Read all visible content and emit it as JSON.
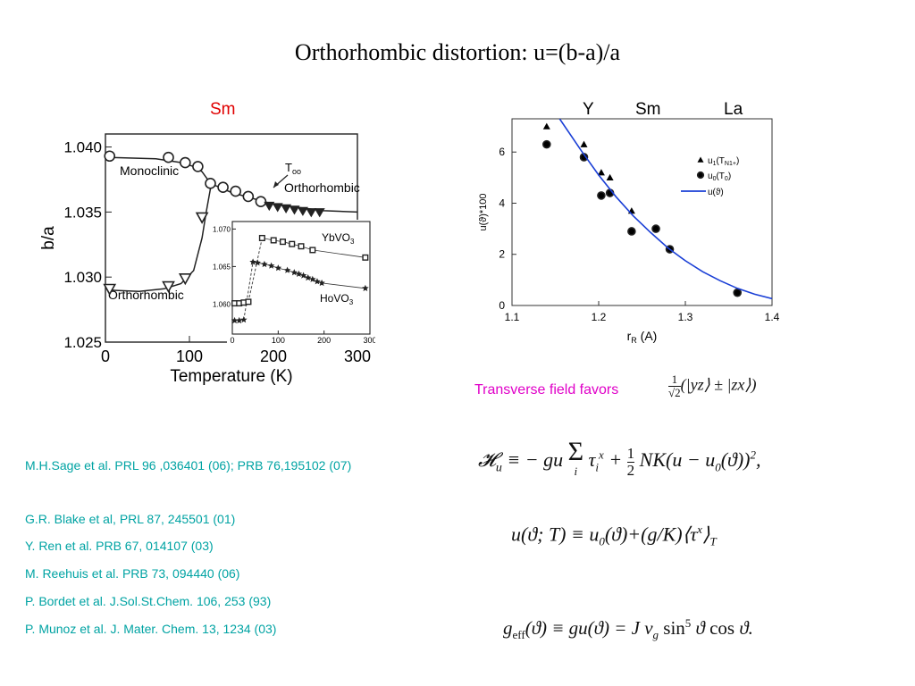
{
  "slide": {
    "title": "Orthorhombic distortion: u=(b-a)/a",
    "left_label": "Sm",
    "top_labels": [
      "Y",
      "Sm",
      "La"
    ],
    "transverse_text": "Transverse field favors",
    "references": [
      "M.H.Sage et al. PRL 96 ,036401 (06); PRB 76,195102 (07)",
      "G.R. Blake et al, PRL 87, 245501 (01)",
      "Y. Ren et al. PRB 67,  014107 (03)",
      "M. Reehuis et al. PRB 73, 094440 (06)",
      "P. Bordet et al. J.Sol.St.Chem. 106, 253 (93)",
      "P. Munoz et al. J. Mater. Chem. 13, 1234 (03)"
    ],
    "equations": {
      "state": "(1/√2)(|yz⟩ ± |zx⟩)",
      "hamiltonian": "𝓗u ≡ − gu Σi τix + ½ NK(u − u0(ϑ))²,",
      "u_of_T": "u(ϑ;T) ≡ u0(ϑ) + (g/K)⟨τx⟩T",
      "g_eff": "geff(ϑ) ≡ gu(ϑ) = J vg sin⁵ϑ cos ϑ."
    }
  },
  "chart_data": [
    {
      "type": "scatter",
      "xlabel": "Temperature (K)",
      "ylabel": "b/a",
      "xlim": [
        0,
        300
      ],
      "ylim": [
        1.025,
        1.041
      ],
      "x_ticks": [
        "0",
        "100",
        "200",
        "300"
      ],
      "y_ticks": [
        "1.025",
        "1.030",
        "1.035",
        "1.040"
      ],
      "annotations": [
        "Monoclinic",
        "Orthorhombic",
        "Orthorhombic",
        "Too"
      ],
      "series": [
        {
          "marker": "circle",
          "x": [
            5,
            75,
            95,
            110,
            125,
            140,
            155,
            170,
            185
          ],
          "y": [
            1.0393,
            1.0392,
            1.0388,
            1.0385,
            1.0372,
            1.0369,
            1.0366,
            1.0362,
            1.0358
          ]
        },
        {
          "marker": "triangle-down",
          "x": [
            195,
            205,
            215,
            225,
            235,
            245,
            255
          ],
          "y": [
            1.0355,
            1.0354,
            1.0353,
            1.0352,
            1.0351,
            1.035,
            1.035
          ]
        },
        {
          "marker": "triangle-open",
          "x": [
            5,
            75,
            95,
            115
          ],
          "y": [
            1.0291,
            1.0293,
            1.0299,
            1.0346
          ]
        },
        {
          "marker": "line",
          "x": [
            5,
            60,
            90,
            105,
            115,
            125,
            150,
            200,
            260,
            300
          ],
          "y": [
            1.0392,
            1.0391,
            1.0388,
            1.0385,
            1.0381,
            1.0372,
            1.0365,
            1.0356,
            1.0351,
            1.035
          ]
        },
        {
          "marker": "line",
          "x": [
            5,
            40,
            70,
            90,
            105,
            115,
            120,
            125
          ],
          "y": [
            1.029,
            1.0289,
            1.0291,
            1.0295,
            1.0305,
            1.033,
            1.035,
            1.0368
          ]
        }
      ]
    },
    {
      "type": "scatter",
      "xlim": [
        0,
        300
      ],
      "ylim": [
        1.056,
        1.071
      ],
      "x_ticks": [
        "0",
        "100",
        "200",
        "300"
      ],
      "y_ticks": [
        "1.060",
        "1.065",
        "1.070"
      ],
      "series": [
        {
          "name": "YbVO3",
          "marker": "square",
          "x": [
            5,
            15,
            25,
            35,
            65,
            90,
            110,
            130,
            150,
            175,
            290
          ],
          "y": [
            1.0601,
            1.0601,
            1.0602,
            1.0603,
            1.0688,
            1.0685,
            1.0683,
            1.068,
            1.0677,
            1.0672,
            1.0662
          ]
        },
        {
          "name": "HoVO3",
          "marker": "star",
          "x": [
            5,
            15,
            25,
            45,
            55,
            70,
            85,
            100,
            120,
            135,
            145,
            155,
            165,
            175,
            185,
            195,
            290
          ],
          "y": [
            1.0578,
            1.0578,
            1.0579,
            1.0656,
            1.0655,
            1.0653,
            1.0651,
            1.0648,
            1.0645,
            1.0642,
            1.064,
            1.0638,
            1.0635,
            1.0633,
            1.063,
            1.0628,
            1.0621
          ]
        }
      ]
    },
    {
      "type": "scatter",
      "xlabel": "rR (A)",
      "ylabel": "u(ϑ)*100",
      "xlim": [
        1.1,
        1.4
      ],
      "ylim": [
        0,
        7.3
      ],
      "x_ticks": [
        "1.1",
        "1.2",
        "1.3",
        "1.4"
      ],
      "y_ticks": [
        "0",
        "2",
        "4",
        "6"
      ],
      "legend_position": "top-right",
      "series": [
        {
          "name": "u1(TN1+)",
          "marker": "triangle",
          "x": [
            1.14,
            1.183,
            1.203,
            1.213,
            1.238
          ],
          "y": [
            7.0,
            6.3,
            5.2,
            5.0,
            3.7
          ]
        },
        {
          "name": "u0(T0)",
          "marker": "circle",
          "x": [
            1.14,
            1.183,
            1.203,
            1.213,
            1.238,
            1.266,
            1.282,
            1.36
          ],
          "y": [
            6.3,
            5.8,
            4.3,
            4.4,
            2.9,
            3.0,
            2.2,
            0.5
          ]
        },
        {
          "name": "u(ϑ)",
          "marker": "line",
          "color": "#1a3fd6",
          "x": [
            1.155,
            1.18,
            1.2,
            1.22,
            1.24,
            1.26,
            1.28,
            1.3,
            1.32,
            1.34,
            1.36,
            1.38,
            1.4
          ],
          "y": [
            7.3,
            6.05,
            5.1,
            4.25,
            3.5,
            2.85,
            2.25,
            1.75,
            1.32,
            0.97,
            0.67,
            0.44,
            0.27
          ]
        }
      ]
    }
  ]
}
